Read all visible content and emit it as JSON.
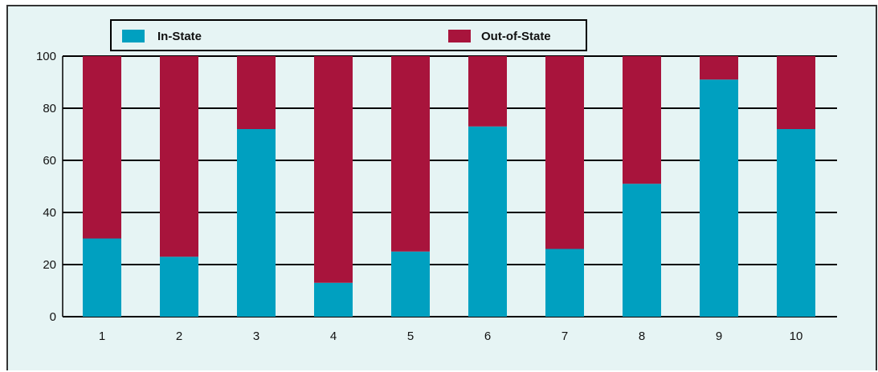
{
  "chart_data": {
    "type": "bar",
    "stacked": true,
    "categories": [
      "1",
      "2",
      "3",
      "4",
      "5",
      "6",
      "7",
      "8",
      "9",
      "10"
    ],
    "series": [
      {
        "name": "In-State",
        "values": [
          30,
          23,
          72,
          13,
          25,
          73,
          26,
          51,
          91,
          72
        ],
        "color": "#00a0c0"
      },
      {
        "name": "Out-of-State",
        "values": [
          70,
          77,
          28,
          87,
          75,
          27,
          74,
          49,
          9,
          28
        ],
        "color": "#a8143c"
      }
    ],
    "title": "",
    "xlabel": "",
    "ylabel": "",
    "ylim": [
      0,
      100
    ],
    "yticks": [
      "0",
      "20",
      "40",
      "60",
      "80",
      "100"
    ],
    "grid": true,
    "legend": "top"
  },
  "colors": {
    "background": "#e6f4f4",
    "frame": "#333333",
    "grid": "#000000"
  }
}
